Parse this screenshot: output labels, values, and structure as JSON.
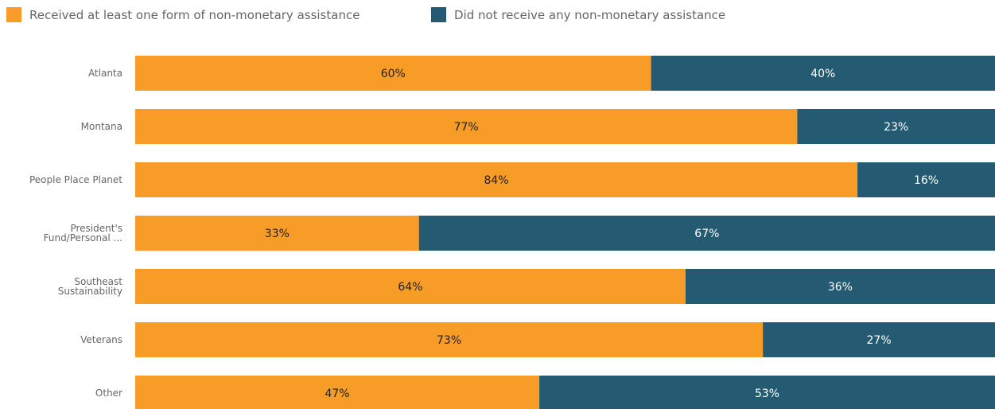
{
  "chart_data": {
    "type": "bar",
    "orientation": "horizontal",
    "stacked": "percent",
    "categories": [
      [
        "Atlanta"
      ],
      [
        "Montana"
      ],
      [
        "People Place Planet"
      ],
      [
        "President's",
        "Fund/Personal ..."
      ],
      [
        "Southeast",
        "Sustainability"
      ],
      [
        "Veterans"
      ],
      [
        "Other"
      ]
    ],
    "series": [
      {
        "name": "Received at least one form of non-monetary assistance",
        "color": "#F89C28",
        "label_color": "#222222",
        "values": [
          60,
          77,
          84,
          33,
          64,
          73,
          47
        ],
        "labels": [
          "60%",
          "77%",
          "84%",
          "33%",
          "64%",
          "73%",
          "47%"
        ]
      },
      {
        "name": "Did not receive any non-monetary assistance",
        "color": "#245B72",
        "label_color": "#ffffff",
        "values": [
          40,
          23,
          16,
          67,
          36,
          27,
          53
        ],
        "labels": [
          "40%",
          "23%",
          "16%",
          "67%",
          "36%",
          "27%",
          "53%"
        ]
      }
    ],
    "xlim": [
      0,
      100
    ],
    "grid": false,
    "legend_position": "top-left"
  }
}
